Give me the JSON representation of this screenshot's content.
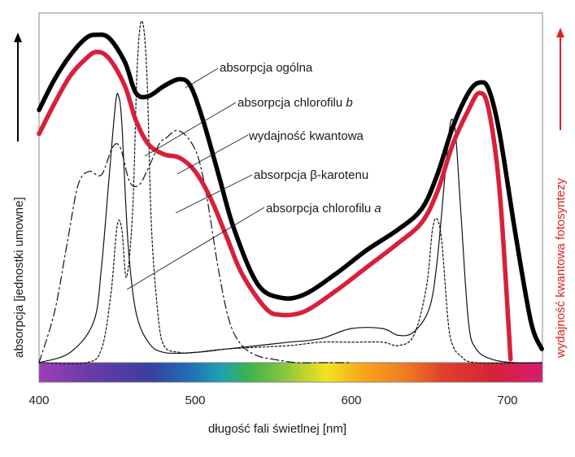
{
  "chart_data": {
    "type": "line",
    "xlabel": "długość fali świetlnej [nm]",
    "ylabel_left": "absorpcja [jednostki umowne]",
    "ylabel_right": "wydajność kwantowa fotosyntezy",
    "xlim": [
      400,
      722
    ],
    "x_ticks": [
      "400",
      "500",
      "600",
      "700"
    ],
    "grid": false,
    "spectrum_bar": true,
    "colors": {
      "absorpcja_ogolna": "#000000",
      "wydajnosc_kwantowa": "#d8203a",
      "right_axis": "#e02020",
      "lines_thin": "#111111"
    },
    "annotations": [
      {
        "text": "absorpcja ogólna",
        "italic": ""
      },
      {
        "text": "absorpcja chlorofilu ",
        "italic": "b"
      },
      {
        "text": "wydajność kwantowa",
        "italic": ""
      },
      {
        "text": "absorpcja β-karotenu",
        "italic": ""
      },
      {
        "text": "absorpcja chlorofilu ",
        "italic": "a"
      }
    ],
    "series": [
      {
        "key": "absorpcja_ogolna",
        "style": "thick-black",
        "x": [
          400,
          410,
          420,
          430,
          437,
          445,
          455,
          462,
          470,
          480,
          490,
          497,
          505,
          515,
          525,
          540,
          555,
          570,
          590,
          610,
          630,
          645,
          655,
          665,
          675,
          682,
          688,
          695,
          705,
          715,
          722
        ],
        "y": [
          0.74,
          0.83,
          0.9,
          0.95,
          0.96,
          0.95,
          0.88,
          0.79,
          0.78,
          0.81,
          0.83,
          0.81,
          0.71,
          0.55,
          0.39,
          0.23,
          0.19,
          0.2,
          0.26,
          0.33,
          0.39,
          0.45,
          0.55,
          0.69,
          0.79,
          0.82,
          0.8,
          0.67,
          0.38,
          0.12,
          0.04
        ]
      },
      {
        "key": "wydajnosc_kwantowa",
        "style": "thick-red",
        "x": [
          400,
          410,
          420,
          430,
          437,
          445,
          455,
          462,
          470,
          480,
          490,
          500,
          510,
          520,
          530,
          545,
          555,
          570,
          590,
          610,
          630,
          645,
          655,
          665,
          675,
          682,
          688,
          695,
          702
        ],
        "y": [
          0.67,
          0.76,
          0.84,
          0.89,
          0.91,
          0.89,
          0.81,
          0.71,
          0.64,
          0.61,
          0.6,
          0.56,
          0.48,
          0.37,
          0.26,
          0.16,
          0.14,
          0.15,
          0.21,
          0.28,
          0.35,
          0.41,
          0.5,
          0.64,
          0.74,
          0.79,
          0.74,
          0.5,
          0.01
        ]
      },
      {
        "key": "absorpcja_chlorofilu_a",
        "style": "thin-solid",
        "x": [
          400,
          420,
          435,
          440,
          445,
          449,
          451,
          453,
          457,
          462,
          470,
          480,
          500,
          520,
          540,
          560,
          580,
          600,
          620,
          630,
          640,
          650,
          655,
          660,
          663,
          665,
          667,
          670,
          675,
          680,
          690,
          705,
          722
        ],
        "y": [
          0.0,
          0.03,
          0.12,
          0.28,
          0.55,
          0.76,
          0.78,
          0.7,
          0.35,
          0.15,
          0.06,
          0.03,
          0.03,
          0.04,
          0.05,
          0.06,
          0.07,
          0.1,
          0.1,
          0.08,
          0.09,
          0.16,
          0.3,
          0.55,
          0.69,
          0.71,
          0.66,
          0.45,
          0.12,
          0.04,
          0.01,
          0.0,
          0.0
        ]
      },
      {
        "key": "absorpcja_chlorofilu_b",
        "style": "thin-dotted",
        "x": [
          400,
          430,
          440,
          446,
          450,
          453,
          456,
          460,
          463,
          466,
          469,
          472,
          476,
          480,
          490,
          500,
          520,
          560,
          580,
          600,
          620,
          630,
          640,
          648,
          652,
          655,
          658,
          662,
          665,
          670,
          680,
          722
        ],
        "y": [
          0.0,
          0.0,
          0.04,
          0.2,
          0.4,
          0.39,
          0.25,
          0.45,
          0.88,
          1.0,
          0.85,
          0.4,
          0.15,
          0.05,
          0.03,
          0.03,
          0.04,
          0.05,
          0.06,
          0.06,
          0.06,
          0.05,
          0.08,
          0.22,
          0.39,
          0.42,
          0.35,
          0.12,
          0.05,
          0.02,
          0.0,
          0.0
        ]
      },
      {
        "key": "absorpcja_beta_karotenu",
        "style": "thin-dashed",
        "x": [
          400,
          410,
          418,
          425,
          432,
          440,
          447,
          452,
          458,
          464,
          470,
          477,
          482,
          488,
          495,
          502,
          508,
          515,
          522,
          530,
          540,
          550,
          565,
          580,
          600
        ],
        "y": [
          0.0,
          0.15,
          0.35,
          0.52,
          0.56,
          0.55,
          0.63,
          0.63,
          0.53,
          0.52,
          0.57,
          0.64,
          0.66,
          0.68,
          0.66,
          0.6,
          0.47,
          0.27,
          0.12,
          0.05,
          0.02,
          0.01,
          0.0,
          0.0,
          0.0
        ]
      }
    ]
  }
}
